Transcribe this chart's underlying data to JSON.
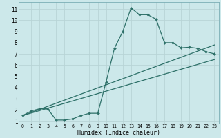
{
  "title": "",
  "xlabel": "Humidex (Indice chaleur)",
  "bg_color": "#cce8ea",
  "grid_color": "#b8d4d6",
  "line_color": "#2d7068",
  "xlim": [
    -0.5,
    23.5
  ],
  "ylim": [
    0.8,
    11.6
  ],
  "xticks": [
    0,
    1,
    2,
    3,
    4,
    5,
    6,
    7,
    8,
    9,
    10,
    11,
    12,
    13,
    14,
    15,
    16,
    17,
    18,
    19,
    20,
    21,
    22,
    23
  ],
  "yticks": [
    1,
    2,
    3,
    4,
    5,
    6,
    7,
    8,
    9,
    10,
    11
  ],
  "line1_x": [
    0,
    1,
    2,
    3,
    4,
    5,
    6,
    7,
    8,
    9,
    10,
    11,
    12,
    13,
    14,
    15,
    16,
    17,
    18,
    19,
    20,
    21,
    22,
    23
  ],
  "line1_y": [
    1.5,
    1.9,
    2.1,
    2.1,
    1.1,
    1.1,
    1.2,
    1.5,
    1.7,
    1.7,
    4.5,
    7.5,
    9.0,
    11.1,
    10.5,
    10.5,
    10.1,
    8.0,
    8.0,
    7.55,
    7.6,
    7.5,
    7.2,
    7.0
  ],
  "line2_x": [
    0,
    23
  ],
  "line2_y": [
    1.5,
    7.8
  ],
  "line3_x": [
    0,
    23
  ],
  "line3_y": [
    1.5,
    6.5
  ],
  "xlabel_fontsize": 6.0,
  "tick_fontsize_x": 4.8,
  "tick_fontsize_y": 5.5
}
